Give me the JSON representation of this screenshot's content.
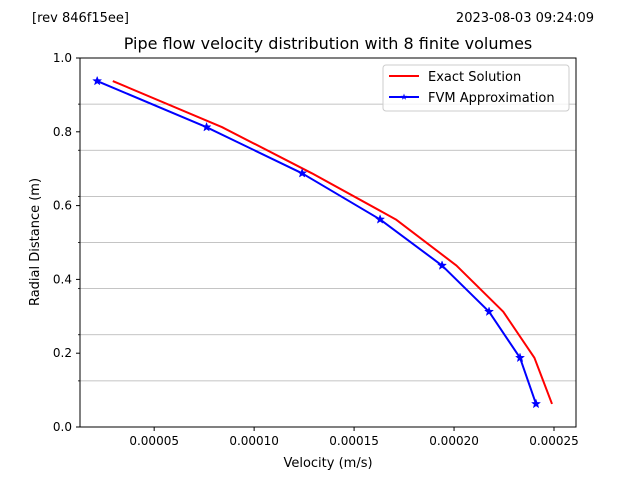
{
  "header": {
    "revision": "[rev 846f15ee]",
    "timestamp": "2023-08-03 09:24:09"
  },
  "chart_data": {
    "type": "line",
    "title": "Pipe flow velocity distribution with 8 finite volumes",
    "xlabel": "Velocity (m/s)",
    "ylabel": "Radial Distance (m)",
    "xlim": [
      1.29e-05,
      0.000261
    ],
    "ylim": [
      0,
      1.0
    ],
    "x_ticks": [
      {
        "value": 5e-05,
        "label": "0.00005"
      },
      {
        "value": 0.0001,
        "label": "0.00010"
      },
      {
        "value": 0.00015,
        "label": "0.00015"
      },
      {
        "value": 0.0002,
        "label": "0.00020"
      },
      {
        "value": 0.00025,
        "label": "0.00025"
      }
    ],
    "y_ticks": [
      {
        "value": 0.0,
        "label": "0.0"
      },
      {
        "value": 0.2,
        "label": "0.2"
      },
      {
        "value": 0.4,
        "label": "0.4"
      },
      {
        "value": 0.6,
        "label": "0.6"
      },
      {
        "value": 0.8,
        "label": "0.8"
      },
      {
        "value": 1.0,
        "label": "1.0"
      }
    ],
    "grid": {
      "axis": "y",
      "minor_values": [
        0.125,
        0.25,
        0.375,
        0.5,
        0.625,
        0.75,
        0.875
      ]
    },
    "legend": {
      "position": "top-right"
    },
    "series": [
      {
        "name": "Exact Solution",
        "color": "#ff0000",
        "marker": "none",
        "x": [
          2.93e-05,
          8.4e-05,
          0.0001289,
          0.0001709,
          0.0002012,
          0.0002246,
          0.0002402,
          0.000249
        ],
        "y": [
          0.9375,
          0.8125,
          0.6875,
          0.5625,
          0.4375,
          0.3125,
          0.1875,
          0.0625
        ]
      },
      {
        "name": "FVM Approximation",
        "color": "#0000ff",
        "marker": "star",
        "x": [
          2.15e-05,
          7.62e-05,
          0.000124,
          0.000163,
          0.000194,
          0.0002175,
          0.000233,
          0.000241
        ],
        "y": [
          0.9375,
          0.8125,
          0.6875,
          0.5625,
          0.4375,
          0.3125,
          0.1875,
          0.0625
        ]
      }
    ]
  }
}
